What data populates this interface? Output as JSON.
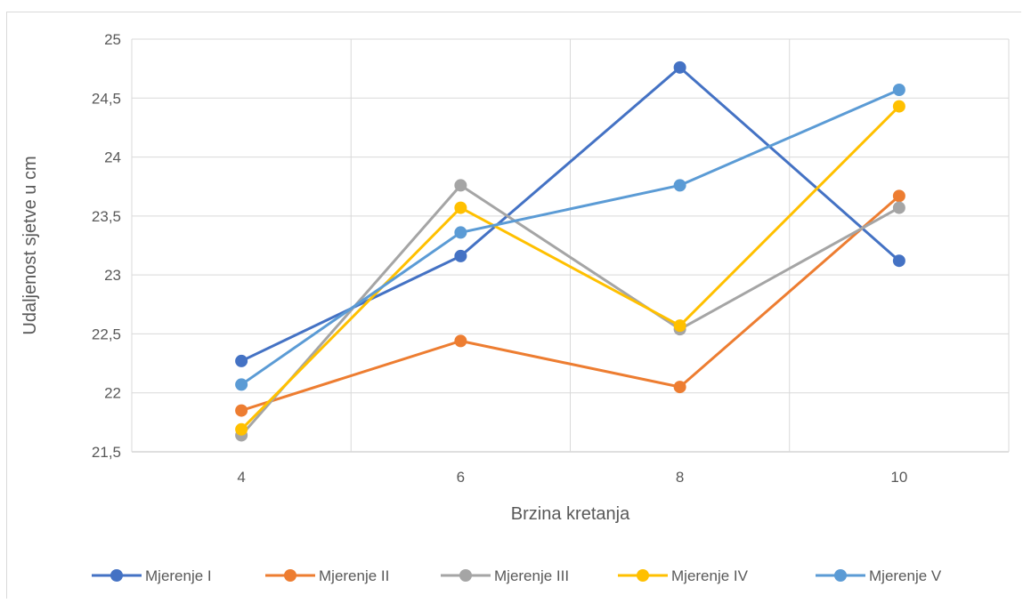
{
  "chart_data": {
    "type": "line",
    "title": "",
    "xlabel": "Brzina kretanja",
    "ylabel": "Udaljenost sjetve u cm",
    "categories": [
      "4",
      "6",
      "8",
      "10"
    ],
    "ylim": [
      21.5,
      25
    ],
    "yticks": [
      "21,5",
      "22",
      "22,5",
      "23",
      "23,5",
      "24",
      "24,5",
      "25"
    ],
    "grid": true,
    "legend_position": "bottom",
    "series": [
      {
        "name": "Mjerenje I",
        "color": "#4472c4",
        "values": [
          22.27,
          23.16,
          24.76,
          23.12
        ]
      },
      {
        "name": "Mjerenje II",
        "color": "#ed7d31",
        "values": [
          21.85,
          22.44,
          22.05,
          23.67
        ]
      },
      {
        "name": "Mjerenje III",
        "color": "#a5a5a5",
        "values": [
          21.64,
          23.76,
          22.54,
          23.57
        ]
      },
      {
        "name": "Mjerenje IV",
        "color": "#ffc000",
        "values": [
          21.69,
          23.57,
          22.57,
          24.43
        ]
      },
      {
        "name": "Mjerenje V",
        "color": "#5b9bd5",
        "values": [
          22.07,
          23.36,
          23.76,
          24.57
        ]
      }
    ]
  }
}
